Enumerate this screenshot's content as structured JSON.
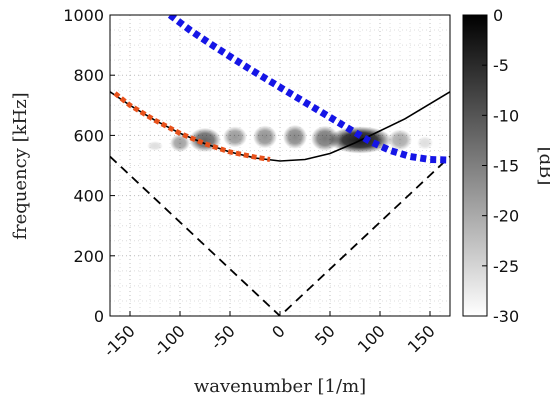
{
  "chart_data": {
    "type": "heatmap",
    "title": "",
    "xlabel": "wavenumber [1/m]",
    "ylabel": "frequency [kHz]",
    "xlim": [
      -170,
      170
    ],
    "ylim": [
      0,
      1000
    ],
    "xticks": [
      -150,
      -100,
      -50,
      0,
      50,
      100,
      150
    ],
    "yticks": [
      0,
      200,
      400,
      600,
      800,
      1000
    ],
    "grid": "dotted-minor",
    "colorbar": {
      "label": "[dB]",
      "range": [
        -30,
        0
      ],
      "ticks": [
        0,
        -5,
        -10,
        -15,
        -20,
        -25,
        -30
      ],
      "colormap": "gray-reversed"
    },
    "heatmap_blobs": [
      {
        "x": -125,
        "y": 565,
        "rx": 8,
        "ry": 16,
        "level": -26
      },
      {
        "x": -100,
        "y": 575,
        "rx": 10,
        "ry": 30,
        "level": -19
      },
      {
        "x": -75,
        "y": 585,
        "rx": 16,
        "ry": 40,
        "level": -12
      },
      {
        "x": -45,
        "y": 595,
        "rx": 12,
        "ry": 35,
        "level": -18
      },
      {
        "x": -15,
        "y": 595,
        "rx": 12,
        "ry": 38,
        "level": -17
      },
      {
        "x": 15,
        "y": 595,
        "rx": 12,
        "ry": 40,
        "level": -16
      },
      {
        "x": 45,
        "y": 590,
        "rx": 14,
        "ry": 42,
        "level": -14
      },
      {
        "x": 80,
        "y": 585,
        "rx": 32,
        "ry": 45,
        "level": -3
      },
      {
        "x": 120,
        "y": 585,
        "rx": 12,
        "ry": 35,
        "level": -20
      },
      {
        "x": 145,
        "y": 575,
        "rx": 8,
        "ry": 22,
        "level": -26
      }
    ],
    "series": [
      {
        "style": "solid-black",
        "x": [
          -170,
          -150,
          -125,
          -100,
          -75,
          -50,
          -25,
          0,
          25,
          50,
          75,
          100,
          125,
          150,
          170
        ],
        "y": [
          745,
          700,
          650,
          607,
          572,
          545,
          525,
          515,
          520,
          540,
          575,
          615,
          655,
          705,
          745
        ]
      },
      {
        "style": "dashed-black",
        "x": [
          -170,
          0,
          170
        ],
        "y": [
          530,
          0,
          530
        ]
      },
      {
        "style": "dotted-orange",
        "x": [
          -165,
          -150,
          -125,
          -100,
          -75,
          -50,
          -25,
          -10
        ],
        "y": [
          740,
          700,
          650,
          607,
          572,
          545,
          528,
          520
        ]
      },
      {
        "style": "dotted-blue",
        "x": [
          -110,
          -90,
          -70,
          -50,
          -30,
          -10,
          10,
          30,
          50,
          70,
          90,
          110,
          130,
          150,
          170
        ],
        "y": [
          1000,
          950,
          905,
          862,
          820,
          780,
          740,
          700,
          660,
          620,
          580,
          550,
          530,
          520,
          518
        ]
      }
    ]
  }
}
